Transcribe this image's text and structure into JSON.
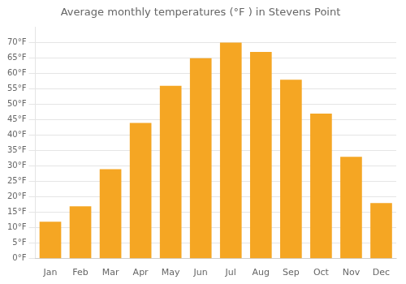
{
  "chart_data": {
    "type": "bar",
    "title": "Average monthly temperatures (°F ) in Stevens Point",
    "categories": [
      "Jan",
      "Feb",
      "Mar",
      "Apr",
      "May",
      "Jun",
      "Jul",
      "Aug",
      "Sep",
      "Oct",
      "Nov",
      "Dec"
    ],
    "values": [
      12,
      17,
      29,
      44,
      56,
      65,
      70,
      67,
      58,
      47,
      33,
      18
    ],
    "color": "#F5A623",
    "ylim": [
      0,
      75
    ],
    "yticks": [
      {
        "value": 0,
        "label": "0°F"
      },
      {
        "value": 5,
        "label": "5°F"
      },
      {
        "value": 10,
        "label": "10°F"
      },
      {
        "value": 15,
        "label": "15°F"
      },
      {
        "value": 20,
        "label": "20°F"
      },
      {
        "value": 25,
        "label": "25°F"
      },
      {
        "value": 30,
        "label": "30°F"
      },
      {
        "value": 35,
        "label": "35°F"
      },
      {
        "value": 40,
        "label": "40°F"
      },
      {
        "value": 45,
        "label": "45°F"
      },
      {
        "value": 50,
        "label": "50°F"
      },
      {
        "value": 55,
        "label": "55°F"
      },
      {
        "value": 60,
        "label": "60°F"
      },
      {
        "value": 65,
        "label": "65°F"
      },
      {
        "value": 70,
        "label": "70°F"
      }
    ],
    "grid": true
  }
}
